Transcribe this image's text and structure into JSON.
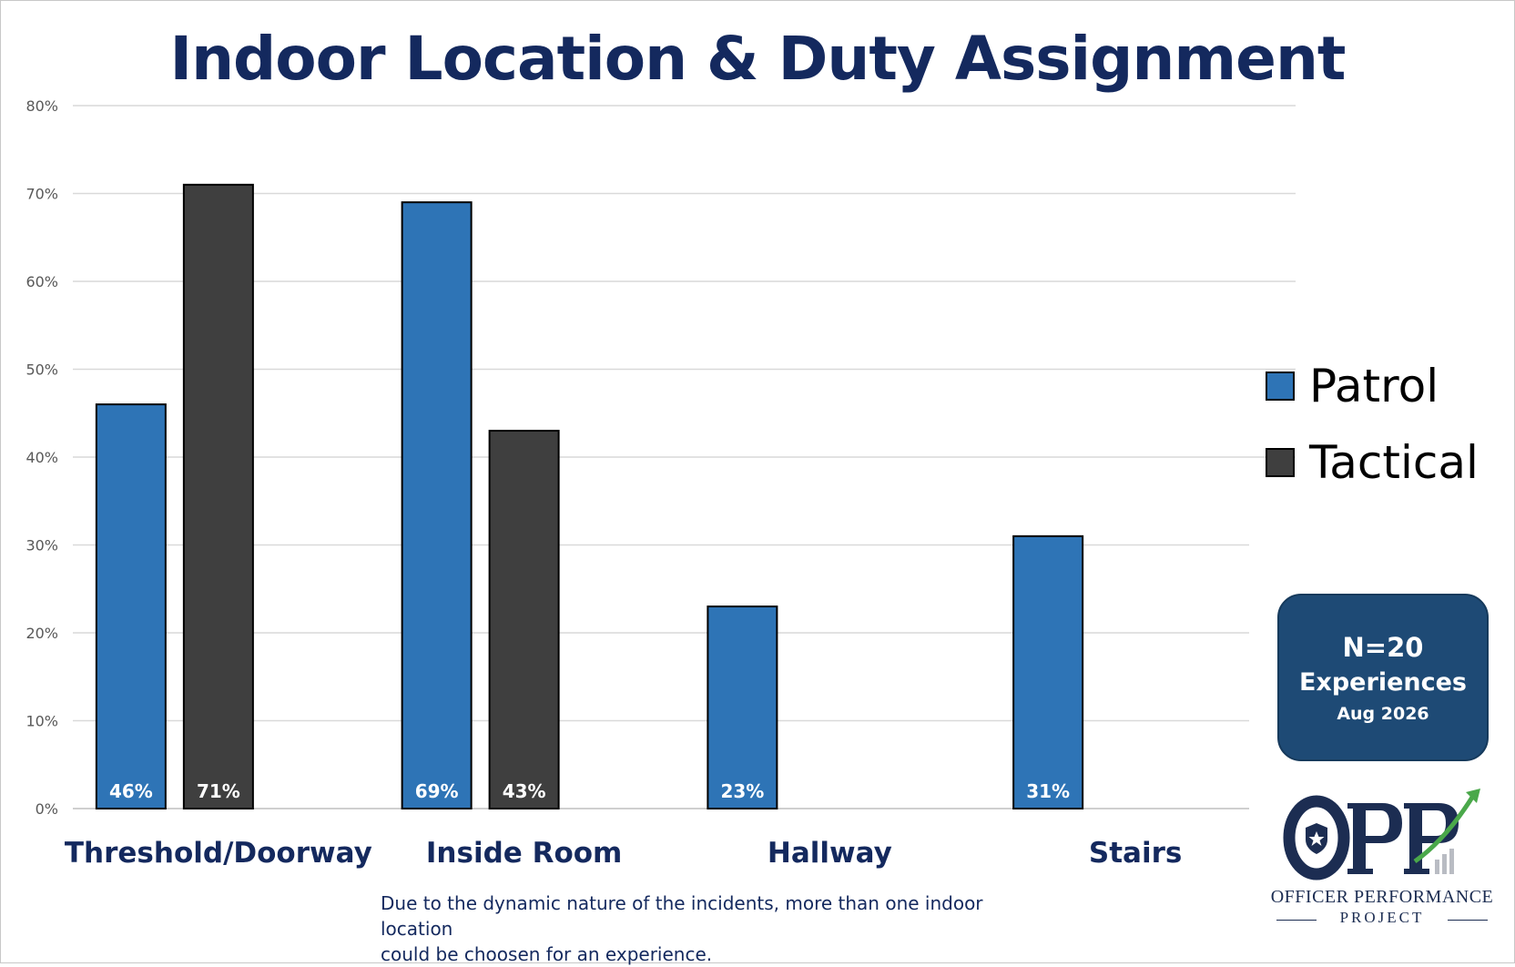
{
  "colors": {
    "patrol": "#2e74b6",
    "tactical": "#3f3f3f",
    "title": "#14295e",
    "badge_bg": "#1e4a75",
    "logo_navy": "#1c2d52",
    "logo_green": "#4aa84a"
  },
  "chart_data": {
    "type": "bar",
    "title": "Indoor Location & Duty Assignment",
    "categories": [
      "Threshold/Doorway",
      "Inside Room",
      "Hallway",
      "Stairs"
    ],
    "series": [
      {
        "name": "Patrol",
        "values": [
          0.46,
          0.69,
          0.23,
          0.31
        ],
        "labels": [
          "46%",
          "69%",
          "23%",
          "31%"
        ]
      },
      {
        "name": "Tactical",
        "values": [
          0.71,
          0.43,
          null,
          null
        ],
        "labels": [
          "71%",
          "43%",
          "",
          ""
        ]
      }
    ],
    "ylim": [
      0,
      0.8
    ],
    "yticks": [
      "0%",
      "10%",
      "20%",
      "30%",
      "40%",
      "50%",
      "60%",
      "70%",
      "80%"
    ],
    "grid": true,
    "legend_position": "right"
  },
  "note": {
    "line1": "Due to the dynamic nature of the incidents, more than one indoor location",
    "line2": "could be choosen for an experience."
  },
  "badge": {
    "n": "N=20",
    "label": "Experiences",
    "date": "Aug 2026"
  },
  "logo": {
    "mark": "OPP",
    "line1": "OFFICER PERFORMANCE",
    "line2": "PROJECT",
    "icon": "police-badge-icon"
  }
}
